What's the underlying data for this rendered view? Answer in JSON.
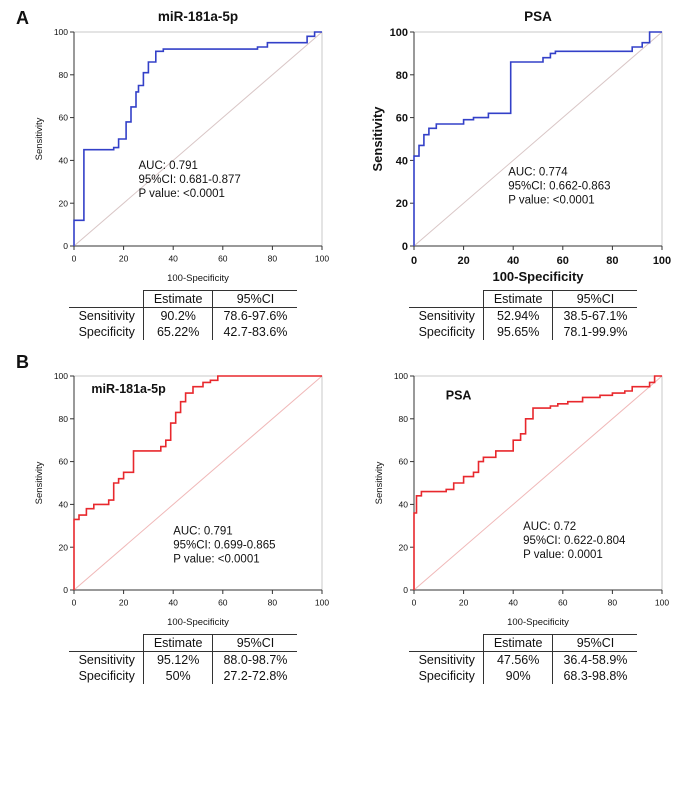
{
  "panels": [
    {
      "label": "A"
    },
    {
      "label": "B"
    }
  ],
  "chart_data": [
    {
      "type": "line",
      "id": "roc-panelA-miR-181a-5p",
      "title": "miR-181a-5p",
      "title_position": "above",
      "xlabel": "100-Specificity",
      "ylabel": "Sensitivity",
      "xlim": [
        0,
        100
      ],
      "ylim": [
        0,
        100
      ],
      "xticks": [
        0,
        20,
        40,
        60,
        80,
        100
      ],
      "yticks": [
        0,
        20,
        40,
        60,
        80,
        100
      ],
      "color": "#3340c8",
      "ref_color": "#d9c6c6",
      "bold_axes": false,
      "diagonal": true,
      "roc_points": [
        [
          0,
          0
        ],
        [
          0,
          12
        ],
        [
          4,
          12
        ],
        [
          4,
          45
        ],
        [
          16,
          45
        ],
        [
          16,
          46
        ],
        [
          18,
          46
        ],
        [
          18,
          50
        ],
        [
          21,
          50
        ],
        [
          21,
          58
        ],
        [
          23,
          58
        ],
        [
          23,
          65
        ],
        [
          25,
          65
        ],
        [
          25,
          72
        ],
        [
          26,
          72
        ],
        [
          26,
          75
        ],
        [
          28,
          75
        ],
        [
          28,
          81
        ],
        [
          30,
          81
        ],
        [
          30,
          86
        ],
        [
          33,
          86
        ],
        [
          33,
          91
        ],
        [
          36,
          91
        ],
        [
          36,
          92
        ],
        [
          74,
          92
        ],
        [
          74,
          93
        ],
        [
          78,
          93
        ],
        [
          78,
          95
        ],
        [
          94,
          95
        ],
        [
          94,
          98
        ],
        [
          97,
          98
        ],
        [
          97,
          100
        ],
        [
          100,
          100
        ]
      ],
      "annotation": {
        "x": 26,
        "y": 36,
        "lines": [
          "AUC: 0.791",
          "95%CI: 0.681-0.877",
          "P value: <0.0001"
        ]
      }
    },
    {
      "type": "line",
      "id": "roc-panelA-PSA",
      "title": "PSA",
      "title_position": "above",
      "xlabel": "100-Specificity",
      "ylabel": "Sensitivity",
      "xlim": [
        0,
        100
      ],
      "ylim": [
        0,
        100
      ],
      "xticks": [
        0,
        20,
        40,
        60,
        80,
        100
      ],
      "yticks": [
        0,
        20,
        40,
        60,
        80,
        100
      ],
      "color": "#3340c8",
      "ref_color": "#d9c6c6",
      "bold_axes": true,
      "diagonal": true,
      "roc_points": [
        [
          0,
          0
        ],
        [
          0,
          42
        ],
        [
          2,
          42
        ],
        [
          2,
          47
        ],
        [
          4,
          47
        ],
        [
          4,
          52
        ],
        [
          6,
          52
        ],
        [
          6,
          55
        ],
        [
          9,
          55
        ],
        [
          9,
          57
        ],
        [
          20,
          57
        ],
        [
          20,
          59
        ],
        [
          24,
          59
        ],
        [
          24,
          60
        ],
        [
          30,
          60
        ],
        [
          30,
          62
        ],
        [
          39,
          62
        ],
        [
          39,
          86
        ],
        [
          52,
          86
        ],
        [
          52,
          88
        ],
        [
          55,
          88
        ],
        [
          55,
          90
        ],
        [
          57,
          90
        ],
        [
          57,
          91
        ],
        [
          88,
          91
        ],
        [
          88,
          93
        ],
        [
          92,
          93
        ],
        [
          92,
          95
        ],
        [
          95,
          95
        ],
        [
          95,
          100
        ],
        [
          100,
          100
        ]
      ],
      "annotation": {
        "x": 38,
        "y": 33,
        "lines": [
          "AUC: 0.774",
          "95%CI: 0.662-0.863",
          "P value: <0.0001"
        ]
      }
    },
    {
      "type": "line",
      "id": "roc-panelB-miR-181a-5p",
      "title": "miR-181a-5p",
      "title_position": "inside",
      "title_x": 22,
      "title_y": 92,
      "xlabel": "100-Specificity",
      "ylabel": "Sensitivity",
      "xlim": [
        0,
        100
      ],
      "ylim": [
        0,
        100
      ],
      "xticks": [
        0,
        20,
        40,
        60,
        80,
        100
      ],
      "yticks": [
        0,
        20,
        40,
        60,
        80,
        100
      ],
      "color": "#e8282d",
      "ref_color": "#f0b8b8",
      "bold_axes": false,
      "diagonal": true,
      "roc_points": [
        [
          0,
          0
        ],
        [
          0,
          33
        ],
        [
          2,
          33
        ],
        [
          2,
          35
        ],
        [
          5,
          35
        ],
        [
          5,
          38
        ],
        [
          8,
          38
        ],
        [
          8,
          40
        ],
        [
          14,
          40
        ],
        [
          14,
          42
        ],
        [
          16,
          42
        ],
        [
          16,
          50
        ],
        [
          18,
          50
        ],
        [
          18,
          52
        ],
        [
          20,
          52
        ],
        [
          20,
          55
        ],
        [
          24,
          55
        ],
        [
          24,
          65
        ],
        [
          35,
          65
        ],
        [
          35,
          67
        ],
        [
          37,
          67
        ],
        [
          37,
          70
        ],
        [
          39,
          70
        ],
        [
          39,
          78
        ],
        [
          41,
          78
        ],
        [
          41,
          83
        ],
        [
          43,
          83
        ],
        [
          43,
          88
        ],
        [
          45,
          88
        ],
        [
          45,
          92
        ],
        [
          48,
          92
        ],
        [
          48,
          95
        ],
        [
          52,
          95
        ],
        [
          52,
          97
        ],
        [
          55,
          97
        ],
        [
          55,
          98
        ],
        [
          58,
          98
        ],
        [
          58,
          100
        ],
        [
          100,
          100
        ]
      ],
      "annotation": {
        "x": 40,
        "y": 26,
        "lines": [
          "AUC: 0.791",
          "95%CI: 0.699-0.865",
          "P value: <0.0001"
        ]
      }
    },
    {
      "type": "line",
      "id": "roc-panelB-PSA",
      "title": "PSA",
      "title_position": "inside",
      "title_x": 18,
      "title_y": 89,
      "xlabel": "100-Specificity",
      "ylabel": "Sensitivity",
      "xlim": [
        0,
        100
      ],
      "ylim": [
        0,
        100
      ],
      "xticks": [
        0,
        20,
        40,
        60,
        80,
        100
      ],
      "yticks": [
        0,
        20,
        40,
        60,
        80,
        100
      ],
      "color": "#e8282d",
      "ref_color": "#f0b8b8",
      "bold_axes": false,
      "diagonal": true,
      "roc_points": [
        [
          0,
          0
        ],
        [
          0,
          36
        ],
        [
          1,
          36
        ],
        [
          1,
          44
        ],
        [
          3,
          44
        ],
        [
          3,
          46
        ],
        [
          13,
          46
        ],
        [
          13,
          47
        ],
        [
          16,
          47
        ],
        [
          16,
          50
        ],
        [
          20,
          50
        ],
        [
          20,
          53
        ],
        [
          24,
          53
        ],
        [
          24,
          55
        ],
        [
          26,
          55
        ],
        [
          26,
          60
        ],
        [
          28,
          60
        ],
        [
          28,
          62
        ],
        [
          33,
          62
        ],
        [
          33,
          65
        ],
        [
          40,
          65
        ],
        [
          40,
          70
        ],
        [
          43,
          70
        ],
        [
          43,
          73
        ],
        [
          45,
          73
        ],
        [
          45,
          80
        ],
        [
          48,
          80
        ],
        [
          48,
          85
        ],
        [
          55,
          85
        ],
        [
          55,
          86
        ],
        [
          58,
          86
        ],
        [
          58,
          87
        ],
        [
          62,
          87
        ],
        [
          62,
          88
        ],
        [
          68,
          88
        ],
        [
          68,
          90
        ],
        [
          75,
          90
        ],
        [
          75,
          91
        ],
        [
          80,
          91
        ],
        [
          80,
          92
        ],
        [
          85,
          92
        ],
        [
          85,
          93
        ],
        [
          88,
          93
        ],
        [
          88,
          95
        ],
        [
          95,
          95
        ],
        [
          95,
          97
        ],
        [
          97,
          97
        ],
        [
          97,
          100
        ],
        [
          100,
          100
        ]
      ],
      "annotation": {
        "x": 44,
        "y": 28,
        "lines": [
          "AUC: 0.72",
          "95%CI: 0.622-0.804",
          "P value: 0.0001"
        ]
      }
    }
  ],
  "tables": [
    {
      "headers": [
        "",
        "Estimate",
        "95%CI"
      ],
      "rows": [
        [
          "Sensitivity",
          "90.2%",
          "78.6-97.6%"
        ],
        [
          "Specificity",
          "65.22%",
          "42.7-83.6%"
        ]
      ]
    },
    {
      "headers": [
        "",
        "Estimate",
        "95%CI"
      ],
      "rows": [
        [
          "Sensitivity",
          "52.94%",
          "38.5-67.1%"
        ],
        [
          "Specificity",
          "95.65%",
          "78.1-99.9%"
        ]
      ]
    },
    {
      "headers": [
        "",
        "Estimate",
        "95%CI"
      ],
      "rows": [
        [
          "Sensitivity",
          "95.12%",
          "88.0-98.7%"
        ],
        [
          "Specificity",
          "50%",
          "27.2-72.8%"
        ]
      ]
    },
    {
      "headers": [
        "",
        "Estimate",
        "95%CI"
      ],
      "rows": [
        [
          "Sensitivity",
          "47.56%",
          "36.4-58.9%"
        ],
        [
          "Specificity",
          "90%",
          "68.3-98.8%"
        ]
      ]
    }
  ]
}
